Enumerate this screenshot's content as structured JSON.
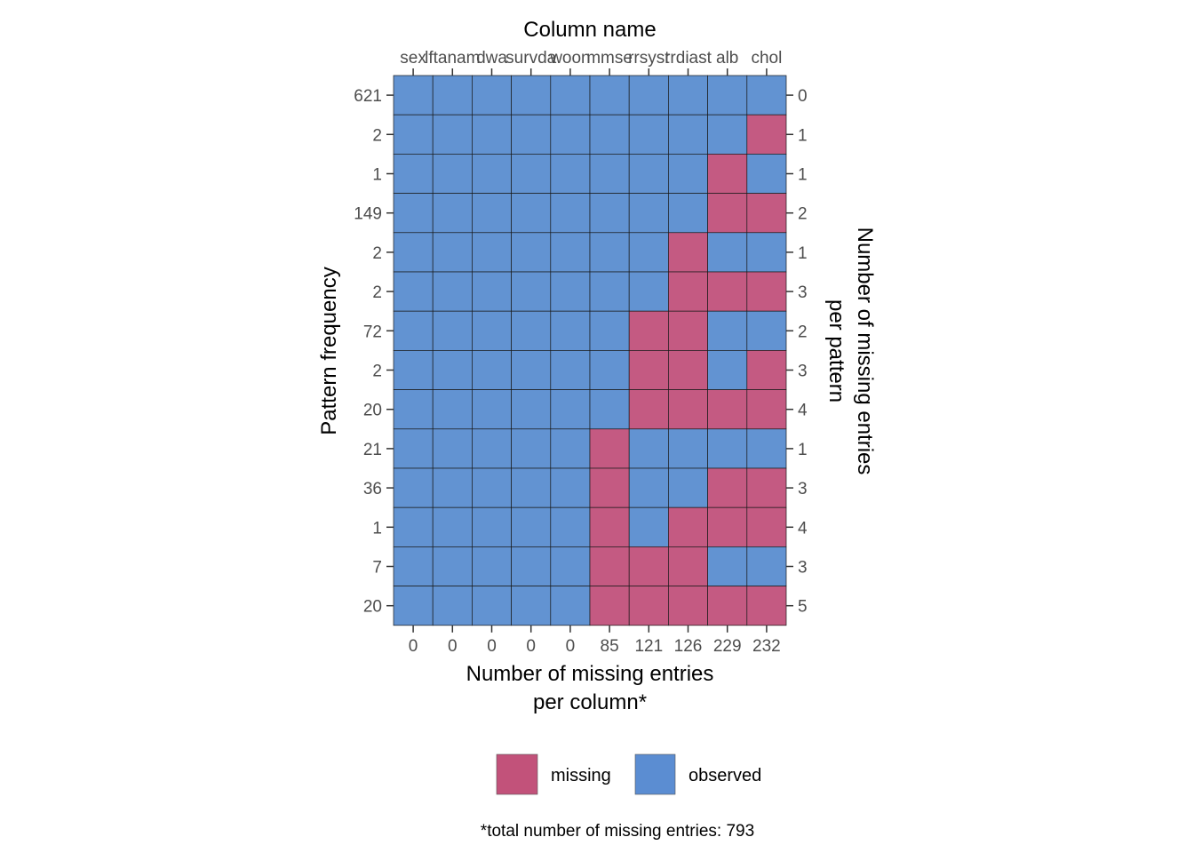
{
  "chart_data": {
    "type": "heatmap",
    "top_axis_title": "Column name",
    "bottom_axis_title_lines": [
      "Number of missing entries",
      "per column*"
    ],
    "left_axis_title": "Pattern frequency",
    "right_axis_title_lines": [
      "Number of missing entries",
      "per pattern"
    ],
    "columns": [
      "sex",
      "lftanam",
      "dwa",
      "survda",
      "woon",
      "mmse",
      "rrsyst",
      "rrdiast",
      "alb",
      "chol"
    ],
    "missing_per_column": [
      "0",
      "0",
      "0",
      "0",
      "0",
      "85",
      "121",
      "126",
      "229",
      "232"
    ],
    "pattern_frequency": [
      "621",
      "2",
      "1",
      "149",
      "2",
      "2",
      "72",
      "2",
      "20",
      "21",
      "36",
      "1",
      "7",
      "20"
    ],
    "missing_per_pattern": [
      "0",
      "1",
      "1",
      "2",
      "1",
      "3",
      "2",
      "3",
      "4",
      "1",
      "3",
      "4",
      "3",
      "5"
    ],
    "matrix": [
      [
        1,
        1,
        1,
        1,
        1,
        1,
        1,
        1,
        1,
        1
      ],
      [
        1,
        1,
        1,
        1,
        1,
        1,
        1,
        1,
        1,
        0
      ],
      [
        1,
        1,
        1,
        1,
        1,
        1,
        1,
        1,
        0,
        1
      ],
      [
        1,
        1,
        1,
        1,
        1,
        1,
        1,
        1,
        0,
        0
      ],
      [
        1,
        1,
        1,
        1,
        1,
        1,
        1,
        0,
        1,
        1
      ],
      [
        1,
        1,
        1,
        1,
        1,
        1,
        1,
        0,
        0,
        0
      ],
      [
        1,
        1,
        1,
        1,
        1,
        1,
        0,
        0,
        1,
        1
      ],
      [
        1,
        1,
        1,
        1,
        1,
        1,
        0,
        0,
        1,
        0
      ],
      [
        1,
        1,
        1,
        1,
        1,
        1,
        0,
        0,
        0,
        0
      ],
      [
        1,
        1,
        1,
        1,
        1,
        0,
        1,
        1,
        1,
        1
      ],
      [
        1,
        1,
        1,
        1,
        1,
        0,
        1,
        1,
        0,
        0
      ],
      [
        1,
        1,
        1,
        1,
        1,
        0,
        1,
        0,
        0,
        0
      ],
      [
        1,
        1,
        1,
        1,
        1,
        0,
        0,
        0,
        1,
        1
      ],
      [
        1,
        1,
        1,
        1,
        1,
        0,
        0,
        0,
        0,
        0
      ]
    ],
    "legend": [
      {
        "label": "missing",
        "color": "#C2527A"
      },
      {
        "label": "observed",
        "color": "#5B8DD2"
      }
    ],
    "cell_colors": {
      "missing": "#C45A82",
      "observed": "#6293D2"
    },
    "legend_position": "bottom",
    "caption": "*total number of missing entries: 793"
  }
}
